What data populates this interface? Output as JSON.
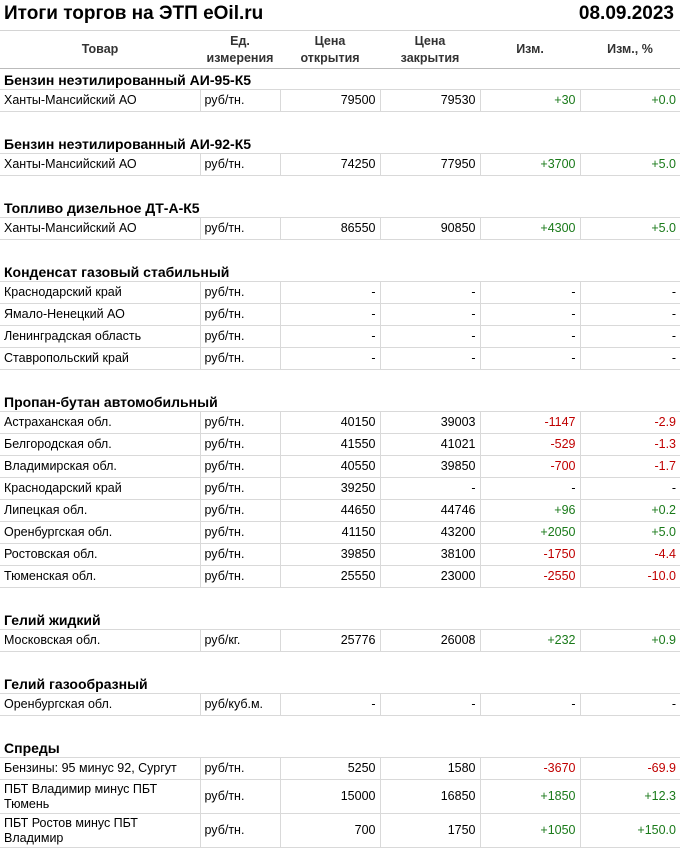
{
  "header": {
    "title": "Итоги торгов на ЭТП eOil.ru",
    "date": "08.09.2023"
  },
  "table": {
    "columns": [
      "Товар",
      "Ед.\nизмерения",
      "Цена\nоткрытия",
      "Цена\nзакрытия",
      "Изм.",
      "Изм., %"
    ],
    "sections": [
      {
        "title": "Бензин неэтилированный АИ-95-К5",
        "rows": [
          [
            "Ханты-Мансийский АО",
            "руб/тн.",
            "79500",
            "79530",
            "+30",
            "+0.0"
          ]
        ]
      },
      {
        "title": "Бензин неэтилированный АИ-92-К5",
        "rows": [
          [
            "Ханты-Мансийский АО",
            "руб/тн.",
            "74250",
            "77950",
            "+3700",
            "+5.0"
          ]
        ]
      },
      {
        "title": "Топливо дизельное ДТ-А-К5",
        "rows": [
          [
            "Ханты-Мансийский АО",
            "руб/тн.",
            "86550",
            "90850",
            "+4300",
            "+5.0"
          ]
        ]
      },
      {
        "title": "Конденсат газовый стабильный",
        "rows": [
          [
            "Краснодарский край",
            "руб/тн.",
            "-",
            "-",
            "-",
            "-"
          ],
          [
            "Ямало-Ненецкий АО",
            "руб/тн.",
            "-",
            "-",
            "-",
            "-"
          ],
          [
            "Ленинградская область",
            "руб/тн.",
            "-",
            "-",
            "-",
            "-"
          ],
          [
            "Ставропольский край",
            "руб/тн.",
            "-",
            "-",
            "-",
            "-"
          ]
        ]
      },
      {
        "title": "Пропан-бутан автомобильный",
        "rows": [
          [
            "Астраханская обл.",
            "руб/тн.",
            "40150",
            "39003",
            "-1147",
            "-2.9"
          ],
          [
            "Белгородская обл.",
            "руб/тн.",
            "41550",
            "41021",
            "-529",
            "-1.3"
          ],
          [
            "Владимирская обл.",
            "руб/тн.",
            "40550",
            "39850",
            "-700",
            "-1.7"
          ],
          [
            "Краснодарский край",
            "руб/тн.",
            "39250",
            "-",
            "-",
            "-"
          ],
          [
            "Липецкая обл.",
            "руб/тн.",
            "44650",
            "44746",
            "+96",
            "+0.2"
          ],
          [
            "Оренбургская обл.",
            "руб/тн.",
            "41150",
            "43200",
            "+2050",
            "+5.0"
          ],
          [
            "Ростовская обл.",
            "руб/тн.",
            "39850",
            "38100",
            "-1750",
            "-4.4"
          ],
          [
            "Тюменская обл.",
            "руб/тн.",
            "25550",
            "23000",
            "-2550",
            "-10.0"
          ]
        ]
      },
      {
        "title": "Гелий жидкий",
        "rows": [
          [
            "Московская обл.",
            "руб/кг.",
            "25776",
            "26008",
            "+232",
            "+0.9"
          ]
        ]
      },
      {
        "title": "Гелий газообразный",
        "rows": [
          [
            "Оренбургская обл.",
            "руб/куб.м.",
            "-",
            "-",
            "-",
            "-"
          ]
        ]
      },
      {
        "title": "Спреды",
        "rows": [
          [
            "Бензины: 95 минус 92, Сургут",
            "руб/тн.",
            "5250",
            "1580",
            "-3670",
            "-69.9"
          ],
          [
            "ПБТ Владимир минус ПБТ\nТюмень",
            "руб/тн.",
            "15000",
            "16850",
            "+1850",
            "+12.3"
          ],
          [
            "ПБТ Ростов минус ПБТ\nВладимир",
            "руб/тн.",
            "700",
            "1750",
            "+1050",
            "+150.0"
          ]
        ]
      }
    ]
  }
}
